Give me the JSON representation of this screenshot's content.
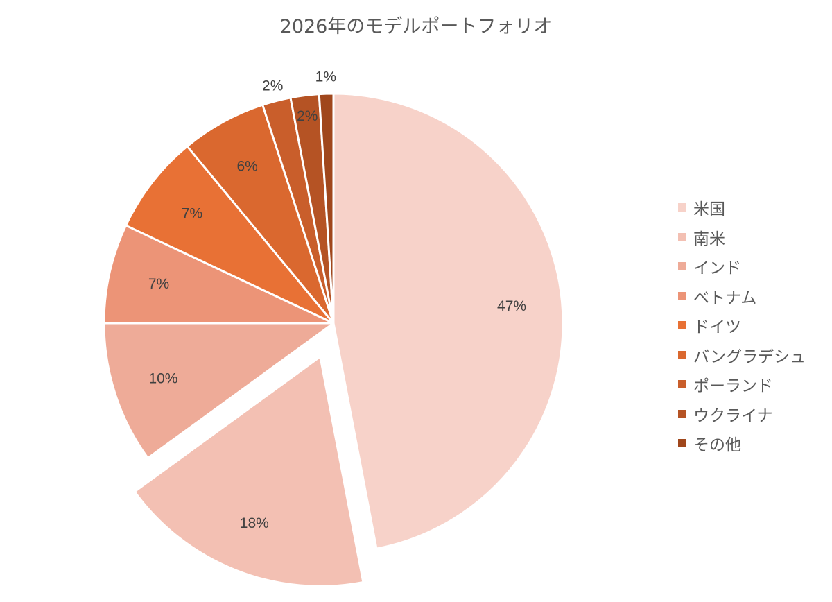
{
  "chart_data": {
    "type": "pie",
    "title": "2026年のモデルポートフォリオ",
    "categories": [
      "米国",
      "南米",
      "インド",
      "ベトナム",
      "ドイツ",
      "バングラデシュ",
      "ポーランド",
      "ウクライナ",
      "その他"
    ],
    "values": [
      47,
      18,
      10,
      7,
      7,
      6,
      2,
      2,
      1
    ],
    "data_labels": [
      "47%",
      "18%",
      "10%",
      "7%",
      "7%",
      "6%",
      "2%",
      "2%",
      "1%"
    ],
    "colors": [
      "#f7d2c9",
      "#f3c0b3",
      "#eeab98",
      "#ec9477",
      "#e87135",
      "#da682f",
      "#c95e2b",
      "#b55324",
      "#a0471c"
    ],
    "exploded": [
      "南米"
    ],
    "start_angle": "12 o'clock",
    "direction": "clockwise",
    "legend": "right"
  }
}
